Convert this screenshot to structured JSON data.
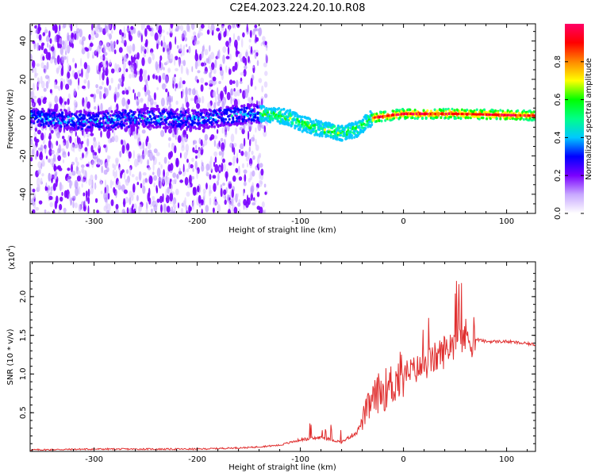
{
  "title": "C2E4.2023.224.20.10.R08",
  "chart_data": [
    {
      "type": "heatmap",
      "xlabel": "Height of straight line (km)",
      "ylabel": "Frequency (Hz)",
      "xlim": [
        -362,
        128
      ],
      "ylim": [
        -50,
        49
      ],
      "xticks": [
        -300,
        -200,
        -100,
        0,
        100
      ],
      "yticks": [
        -40,
        -20,
        0,
        20,
        40
      ],
      "colorbar": {
        "label": "Normalized spectral amplitude",
        "range": [
          0,
          1
        ],
        "ticks": [
          0.0,
          0.2,
          0.4,
          0.6,
          0.8
        ],
        "colors": [
          "#ffffff",
          "#c8a8ff",
          "#7a00ff",
          "#0000ff",
          "#00c8ff",
          "#00ff88",
          "#00ff00",
          "#ffff00",
          "#ff8800",
          "#ff0000",
          "#ff0066"
        ]
      },
      "ridge": [
        {
          "x": -360,
          "f": 0
        },
        {
          "x": -300,
          "f": -2
        },
        {
          "x": -250,
          "f": 0
        },
        {
          "x": -200,
          "f": -1
        },
        {
          "x": -150,
          "f": 2
        },
        {
          "x": -135,
          "f": 2
        },
        {
          "x": -110,
          "f": 0
        },
        {
          "x": -100,
          "f": -3
        },
        {
          "x": -80,
          "f": -6
        },
        {
          "x": -60,
          "f": -8
        },
        {
          "x": -45,
          "f": -6
        },
        {
          "x": -30,
          "f": 0
        },
        {
          "x": 0,
          "f": 2
        },
        {
          "x": 50,
          "f": 2
        },
        {
          "x": 128,
          "f": 1
        }
      ],
      "noise_edge_x": -140
    },
    {
      "type": "line",
      "xlabel": "Height of straight line (km)",
      "ylabel": "SNR (10 * v/v)",
      "yscale_label": "(x10",
      "yscale_exp": "4",
      "yscale_close": ")",
      "xlim": [
        -362,
        128
      ],
      "ylim": [
        0,
        2.45
      ],
      "xticks": [
        -300,
        -200,
        -100,
        0,
        100
      ],
      "yticks": [
        0.5,
        1.0,
        1.5,
        2.0
      ],
      "series": [
        {
          "color": "#e03030",
          "x": [
            -362,
            -300,
            -200,
            -150,
            -120,
            -100,
            -80,
            -60,
            -45,
            -35,
            -25,
            -15,
            -5,
            0,
            10,
            20,
            30,
            40,
            50,
            55,
            60,
            70,
            80,
            100,
            128
          ],
          "y": [
            0.02,
            0.03,
            0.03,
            0.05,
            0.08,
            0.15,
            0.18,
            0.12,
            0.25,
            0.55,
            0.75,
            0.82,
            0.95,
            1.0,
            1.05,
            1.1,
            1.2,
            1.3,
            1.45,
            1.5,
            1.48,
            1.45,
            1.42,
            1.42,
            1.38
          ]
        }
      ]
    }
  ]
}
